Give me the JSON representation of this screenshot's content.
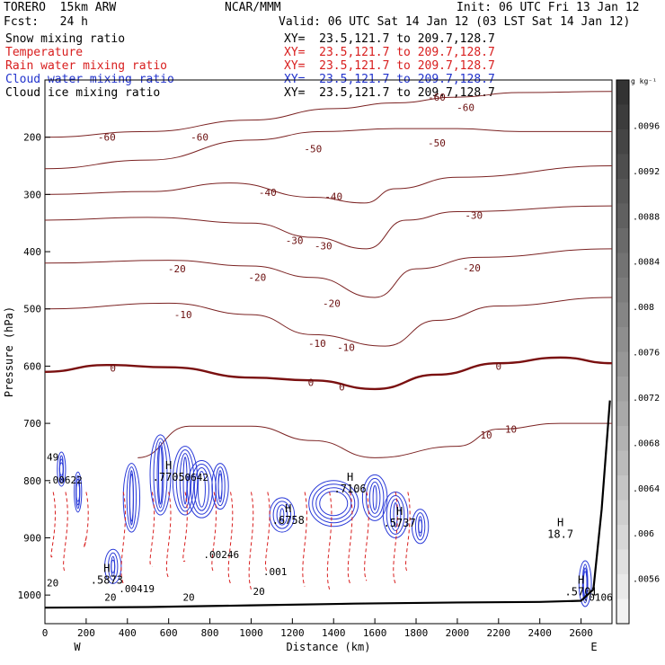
{
  "header": {
    "model": "TORERO  15km ARW",
    "org": "NCAR/MMM",
    "init": "Init: 06 UTC Fri 13 Jan 12",
    "fcst": "Fcst:   24 h",
    "valid": "Valid: 06 UTC Sat 14 Jan 12 (03 LST Sat 14 Jan 12)",
    "fields": [
      {
        "name": "Snow mixing ratio",
        "xy": "XY=  23.5,121.7 to 209.7,128.7",
        "color": "#000000"
      },
      {
        "name": "Temperature",
        "xy": "XY=  23.5,121.7 to 209.7,128.7",
        "color": "#d81e1e"
      },
      {
        "name": "Rain water mixing ratio",
        "xy": "XY=  23.5,121.7 to 209.7,128.7",
        "color": "#d81e1e"
      },
      {
        "name": "Cloud water mixing ratio",
        "xy": "XY=  23.5,121.7 to 209.7,128.7",
        "color": "#2233cc"
      },
      {
        "name": "Cloud ice mixing ratio",
        "xy": "XY=  23.5,121.7 to 209.7,128.7",
        "color": "#000000"
      }
    ]
  },
  "chart_data": {
    "type": "contour",
    "xlabel": "Distance (km)",
    "ylabel": "Pressure (hPa)",
    "xlim": [
      0,
      2750
    ],
    "ylim": [
      1050,
      100
    ],
    "x_ticks": [
      0,
      200,
      400,
      600,
      800,
      1000,
      1200,
      1400,
      1600,
      1800,
      2000,
      2200,
      2400,
      2600
    ],
    "y_ticks": [
      200,
      300,
      400,
      500,
      600,
      700,
      800,
      900,
      1000
    ],
    "end_labels": {
      "left": "W",
      "right": "E"
    },
    "colorbar": {
      "unit": "g kg⁻¹",
      "ticks": [
        ".0096",
        ".0092",
        ".0088",
        ".0084",
        ".008",
        ".0076",
        ".0072",
        ".0068",
        ".0064",
        ".006",
        ".0056"
      ],
      "shade_dark": "#333333",
      "shade_light": "#f2f2f2"
    },
    "temperature_contours": [
      {
        "level": -60,
        "points": [
          [
            0,
            200
          ],
          [
            500,
            190
          ],
          [
            1000,
            170
          ],
          [
            1400,
            150
          ],
          [
            1700,
            140
          ],
          [
            2000,
            130
          ],
          [
            2300,
            122
          ],
          [
            2750,
            120
          ]
        ],
        "labels": [
          [
            300,
            200,
            "-60"
          ],
          [
            750,
            200,
            "-60"
          ],
          [
            1900,
            130,
            "-60"
          ],
          [
            2040,
            148,
            "-60"
          ]
        ]
      },
      {
        "level": -50,
        "points": [
          [
            0,
            255
          ],
          [
            500,
            240
          ],
          [
            1000,
            205
          ],
          [
            1350,
            190
          ],
          [
            1700,
            185
          ],
          [
            2000,
            185
          ],
          [
            2300,
            190
          ],
          [
            2750,
            190
          ]
        ],
        "labels": [
          [
            1300,
            220,
            "-50"
          ],
          [
            1900,
            210,
            "-50"
          ]
        ]
      },
      {
        "level": -40,
        "points": [
          [
            0,
            300
          ],
          [
            500,
            295
          ],
          [
            900,
            280
          ],
          [
            1300,
            305
          ],
          [
            1550,
            315
          ],
          [
            1700,
            290
          ],
          [
            2000,
            270
          ],
          [
            2750,
            250
          ]
        ],
        "labels": [
          [
            1080,
            296,
            "-40"
          ],
          [
            1400,
            303,
            "-40"
          ]
        ]
      },
      {
        "level": -30,
        "points": [
          [
            0,
            345
          ],
          [
            500,
            340
          ],
          [
            1000,
            350
          ],
          [
            1300,
            375
          ],
          [
            1560,
            395
          ],
          [
            1750,
            345
          ],
          [
            2000,
            330
          ],
          [
            2750,
            320
          ]
        ],
        "labels": [
          [
            1210,
            380,
            "-30"
          ],
          [
            1350,
            390,
            "-30"
          ],
          [
            2080,
            336,
            "-30"
          ]
        ]
      },
      {
        "level": -20,
        "points": [
          [
            0,
            420
          ],
          [
            600,
            415
          ],
          [
            1000,
            425
          ],
          [
            1300,
            445
          ],
          [
            1600,
            480
          ],
          [
            1800,
            430
          ],
          [
            2100,
            410
          ],
          [
            2750,
            395
          ]
        ],
        "labels": [
          [
            640,
            430,
            "-20"
          ],
          [
            1030,
            445,
            "-20"
          ],
          [
            1390,
            490,
            "-20"
          ],
          [
            2070,
            428,
            "-20"
          ]
        ]
      },
      {
        "level": -10,
        "points": [
          [
            0,
            500
          ],
          [
            600,
            490
          ],
          [
            1000,
            510
          ],
          [
            1300,
            545
          ],
          [
            1650,
            565
          ],
          [
            1900,
            520
          ],
          [
            2200,
            495
          ],
          [
            2750,
            480
          ]
        ],
        "labels": [
          [
            670,
            510,
            "-10"
          ],
          [
            1320,
            560,
            "-10"
          ],
          [
            1460,
            567,
            "-10"
          ]
        ]
      },
      {
        "level": 0,
        "points": [
          [
            0,
            610
          ],
          [
            300,
            598
          ],
          [
            600,
            602
          ],
          [
            1000,
            620
          ],
          [
            1300,
            625
          ],
          [
            1600,
            640
          ],
          [
            1900,
            615
          ],
          [
            2200,
            595
          ],
          [
            2500,
            585
          ],
          [
            2750,
            595
          ]
        ],
        "labels": [
          [
            330,
            603,
            "0"
          ],
          [
            1290,
            628,
            "0"
          ],
          [
            1440,
            636,
            "0"
          ],
          [
            2200,
            600,
            "0"
          ]
        ]
      },
      {
        "level": 10,
        "points": [
          [
            450,
            760
          ],
          [
            700,
            705
          ],
          [
            1000,
            705
          ],
          [
            1300,
            730
          ],
          [
            1600,
            760
          ],
          [
            2000,
            740
          ],
          [
            2200,
            710
          ],
          [
            2500,
            700
          ],
          [
            2750,
            700
          ]
        ],
        "labels": [
          [
            2140,
            720,
            "10"
          ],
          [
            2260,
            710,
            "10"
          ]
        ]
      }
    ],
    "max_labels": [
      {
        "x": 2500,
        "y": 880,
        "text": "H",
        "value": "18.7"
      },
      {
        "x": 1480,
        "y": 800,
        "text": "H",
        "value": ".7106"
      },
      {
        "x": 1180,
        "y": 855,
        "text": "H",
        "value": ".6758"
      },
      {
        "x": 300,
        "y": 960,
        "text": "H",
        "value": ".5873"
      },
      {
        "x": 1720,
        "y": 860,
        "text": "H",
        "value": ".5737"
      },
      {
        "x": 2600,
        "y": 980,
        "text": "H",
        "value": ".5701"
      },
      {
        "x": 600,
        "y": 780,
        "text": "H",
        "value": ".7705"
      }
    ],
    "rain_labels": [
      {
        "x": 0,
        "y": 805,
        "value": ".00622"
      },
      {
        "x": 0,
        "y": 765,
        "value": "49"
      },
      {
        "x": 350,
        "y": 995,
        "value": ".00419"
      },
      {
        "x": 640,
        "y": 800,
        "value": ".0642"
      },
      {
        "x": 760,
        "y": 935,
        "value": ".00246"
      },
      {
        "x": 1050,
        "y": 965,
        "value": ".001"
      },
      {
        "x": 2600,
        "y": 1010,
        "value": ".0106"
      },
      {
        "x": 0,
        "y": 985,
        "value": "20"
      },
      {
        "x": 280,
        "y": 1010,
        "value": "20"
      },
      {
        "x": 660,
        "y": 1010,
        "value": "20"
      },
      {
        "x": 1000,
        "y": 1000,
        "value": "20"
      }
    ],
    "terrain": {
      "x": [
        0,
        500,
        1000,
        1500,
        2000,
        2400,
        2600,
        2660,
        2700,
        2740
      ],
      "p": [
        1022,
        1021,
        1018,
        1015,
        1013,
        1012,
        1010,
        990,
        850,
        660
      ]
    }
  }
}
